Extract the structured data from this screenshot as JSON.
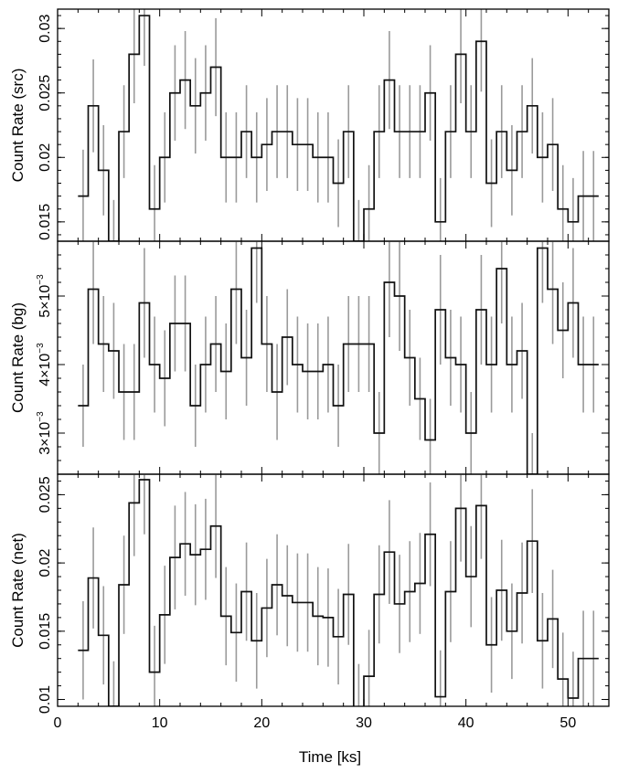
{
  "figure": {
    "xlabel": "Time [ks]",
    "xlim": [
      0,
      54
    ],
    "x_ticks": [
      0,
      10,
      20,
      30,
      40,
      50
    ],
    "x_tick_labels": [
      "0",
      "10",
      "20",
      "30",
      "40",
      "50"
    ],
    "colors": {
      "line": "#111111",
      "errorbar": "#9a9a9a",
      "frame": "#000000"
    }
  },
  "chart_data": [
    {
      "type": "line",
      "step": true,
      "ylabel": "Count Rate (src)",
      "ylim": [
        0.0135,
        0.0315
      ],
      "y_ticks": [
        0.015,
        0.02,
        0.025,
        0.03
      ],
      "y_tick_labels": [
        "0.015",
        "0.02",
        "0.025",
        "0.03"
      ],
      "bin_width": 1.0,
      "x": [
        2.5,
        3.5,
        4.5,
        5.5,
        6.5,
        7.5,
        8.5,
        9.5,
        10.5,
        11.5,
        12.5,
        13.5,
        14.5,
        15.5,
        16.5,
        17.5,
        18.5,
        19.5,
        20.5,
        21.5,
        22.5,
        23.5,
        24.5,
        25.5,
        26.5,
        27.5,
        28.5,
        29.5,
        30.5,
        31.5,
        32.5,
        33.5,
        34.5,
        35.5,
        36.5,
        37.5,
        38.5,
        39.5,
        40.5,
        41.5,
        42.5,
        43.5,
        44.5,
        45.5,
        46.5,
        47.5,
        48.5,
        49.5,
        50.5,
        51.5,
        52.5
      ],
      "y": [
        0.017,
        0.024,
        0.019,
        0.0135,
        0.022,
        0.028,
        0.031,
        0.016,
        0.02,
        0.025,
        0.026,
        0.024,
        0.025,
        0.027,
        0.02,
        0.02,
        0.022,
        0.02,
        0.021,
        0.022,
        0.022,
        0.021,
        0.021,
        0.02,
        0.02,
        0.018,
        0.022,
        0.0135,
        0.016,
        0.022,
        0.026,
        0.022,
        0.022,
        0.022,
        0.025,
        0.015,
        0.022,
        0.028,
        0.022,
        0.029,
        0.018,
        0.022,
        0.019,
        0.022,
        0.024,
        0.02,
        0.021,
        0.016,
        0.015,
        0.017,
        0.017
      ],
      "err": [
        0.0036,
        0.0036,
        0.0035,
        0.0032,
        0.0036,
        0.0038,
        0.0039,
        0.0034,
        0.0035,
        0.0037,
        0.0038,
        0.0037,
        0.0037,
        0.0038,
        0.0035,
        0.0035,
        0.0036,
        0.0035,
        0.0036,
        0.0036,
        0.0036,
        0.0036,
        0.0036,
        0.0035,
        0.0035,
        0.0034,
        0.0036,
        0.0032,
        0.0034,
        0.0036,
        0.0038,
        0.0036,
        0.0036,
        0.0036,
        0.0037,
        0.0034,
        0.0036,
        0.0038,
        0.0036,
        0.0039,
        0.0034,
        0.0036,
        0.0035,
        0.0036,
        0.0037,
        0.0035,
        0.0036,
        0.0034,
        0.0034,
        0.0035,
        0.0035
      ]
    },
    {
      "type": "line",
      "step": true,
      "ylabel": "Count Rate (bg)",
      "ylim": [
        0.0024,
        0.0058
      ],
      "y_ticks": [
        0.003,
        0.004,
        0.005
      ],
      "y_tick_labels": [
        "3×10",
        "4×10",
        "5×10"
      ],
      "y_tick_exponent": "−3",
      "bin_width": 1.0,
      "x": [
        2.5,
        3.5,
        4.5,
        5.5,
        6.5,
        7.5,
        8.5,
        9.5,
        10.5,
        11.5,
        12.5,
        13.5,
        14.5,
        15.5,
        16.5,
        17.5,
        18.5,
        19.5,
        20.5,
        21.5,
        22.5,
        23.5,
        24.5,
        25.5,
        26.5,
        27.5,
        28.5,
        29.5,
        30.5,
        31.5,
        32.5,
        33.5,
        34.5,
        35.5,
        36.5,
        37.5,
        38.5,
        39.5,
        40.5,
        41.5,
        42.5,
        43.5,
        44.5,
        45.5,
        46.5,
        47.5,
        48.5,
        49.5,
        50.5,
        51.5,
        52.5
      ],
      "y": [
        0.0034,
        0.0051,
        0.0043,
        0.0042,
        0.0036,
        0.0036,
        0.0049,
        0.004,
        0.0038,
        0.0046,
        0.0046,
        0.0034,
        0.004,
        0.0043,
        0.0039,
        0.0051,
        0.0041,
        0.0057,
        0.0043,
        0.0036,
        0.0044,
        0.004,
        0.0039,
        0.0039,
        0.004,
        0.0034,
        0.0043,
        0.0043,
        0.0043,
        0.003,
        0.0052,
        0.005,
        0.0041,
        0.0035,
        0.0029,
        0.0048,
        0.0041,
        0.004,
        0.003,
        0.0048,
        0.004,
        0.0054,
        0.004,
        0.0042,
        0.0024,
        0.0057,
        0.0051,
        0.0045,
        0.0049,
        0.004,
        0.004
      ],
      "err": [
        0.0006,
        0.0008,
        0.0007,
        0.0007,
        0.0007,
        0.0007,
        0.0008,
        0.0007,
        0.0007,
        0.0007,
        0.0007,
        0.0006,
        0.0007,
        0.0007,
        0.0007,
        0.0008,
        0.0007,
        0.0008,
        0.0007,
        0.0007,
        0.0007,
        0.0007,
        0.0007,
        0.0007,
        0.0007,
        0.0006,
        0.0007,
        0.0007,
        0.0007,
        0.0006,
        0.0008,
        0.0008,
        0.0007,
        0.0006,
        0.0006,
        0.0008,
        0.0007,
        0.0007,
        0.0006,
        0.0008,
        0.0007,
        0.0008,
        0.0007,
        0.0007,
        0.0006,
        0.0008,
        0.0008,
        0.0007,
        0.0008,
        0.0007,
        0.0007
      ]
    },
    {
      "type": "line",
      "step": true,
      "ylabel": "Count Rate (net)",
      "ylim": [
        0.0095,
        0.0265
      ],
      "y_ticks": [
        0.01,
        0.015,
        0.02,
        0.025
      ],
      "y_tick_labels": [
        "0.01",
        "0.015",
        "0.02",
        "0.025"
      ],
      "bin_width": 1.0,
      "x": [
        2.5,
        3.5,
        4.5,
        5.5,
        6.5,
        7.5,
        8.5,
        9.5,
        10.5,
        11.5,
        12.5,
        13.5,
        14.5,
        15.5,
        16.5,
        17.5,
        18.5,
        19.5,
        20.5,
        21.5,
        22.5,
        23.5,
        24.5,
        25.5,
        26.5,
        27.5,
        28.5,
        29.5,
        30.5,
        31.5,
        32.5,
        33.5,
        34.5,
        35.5,
        36.5,
        37.5,
        38.5,
        39.5,
        40.5,
        41.5,
        42.5,
        43.5,
        44.5,
        45.5,
        46.5,
        47.5,
        48.5,
        49.5,
        50.5,
        51.5,
        52.5
      ],
      "y": [
        0.0136,
        0.0189,
        0.0147,
        0.0095,
        0.0184,
        0.0244,
        0.0261,
        0.012,
        0.0162,
        0.0204,
        0.0214,
        0.0206,
        0.021,
        0.0227,
        0.0161,
        0.0149,
        0.0179,
        0.0143,
        0.0167,
        0.0184,
        0.0176,
        0.0171,
        0.0171,
        0.0161,
        0.016,
        0.0146,
        0.0177,
        0.0093,
        0.0117,
        0.0177,
        0.0208,
        0.017,
        0.0179,
        0.0185,
        0.0221,
        0.0102,
        0.0179,
        0.024,
        0.019,
        0.0242,
        0.014,
        0.018,
        0.015,
        0.0178,
        0.0216,
        0.0143,
        0.0159,
        0.0115,
        0.0101,
        0.013,
        0.013
      ],
      "err": [
        0.0036,
        0.0037,
        0.0036,
        0.0033,
        0.0036,
        0.0039,
        0.004,
        0.0034,
        0.0036,
        0.0038,
        0.0038,
        0.0037,
        0.0037,
        0.0038,
        0.0036,
        0.0036,
        0.0036,
        0.0035,
        0.0036,
        0.0037,
        0.0037,
        0.0036,
        0.0036,
        0.0036,
        0.0036,
        0.0035,
        0.0037,
        0.0033,
        0.0034,
        0.0036,
        0.0038,
        0.0036,
        0.0037,
        0.0037,
        0.0038,
        0.0034,
        0.0037,
        0.0039,
        0.0037,
        0.0039,
        0.0035,
        0.0037,
        0.0035,
        0.0037,
        0.0038,
        0.0035,
        0.0036,
        0.0034,
        0.0034,
        0.0035,
        0.0035
      ]
    }
  ]
}
